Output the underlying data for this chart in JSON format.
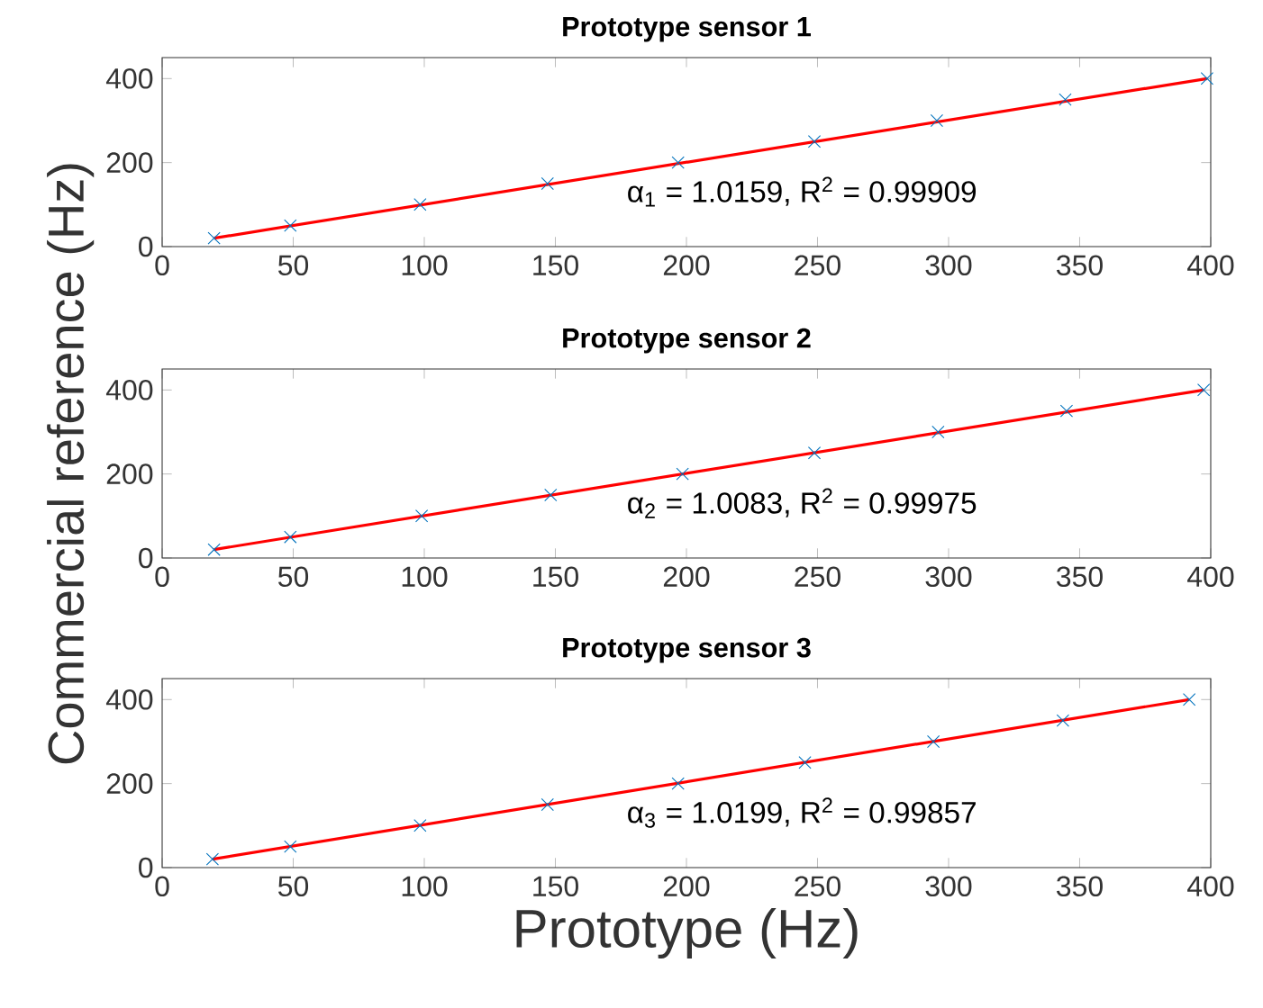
{
  "chart_data": [
    {
      "type": "scatter",
      "title": "Prototype sensor 1",
      "xlim": [
        0,
        400
      ],
      "xticks": [
        0,
        50,
        100,
        150,
        200,
        250,
        300,
        350,
        400
      ],
      "ylim": [
        0,
        450
      ],
      "yticks": [
        0,
        200,
        400
      ],
      "series": [
        {
          "color": "#0072bd",
          "marker": "cross",
          "x": [
            19.8,
            48.9,
            98.4,
            147,
            196.8,
            248.8,
            295.5,
            344.5,
            398.6
          ],
          "values": [
            20,
            50,
            100,
            150,
            200,
            250,
            300,
            350,
            400
          ]
        },
        {
          "type": "line",
          "marker": "none",
          "color": "#ff0000",
          "x": [
            19.8,
            398.6
          ],
          "values": [
            20,
            400
          ]
        }
      ],
      "annotations": [
        "α$_{1}$ = 1.0159, R$^{2}$ = 0.99909"
      ]
    },
    {
      "type": "scatter",
      "title": "Prototype sensor 2",
      "ylabel": "Commercial reference (Hz)",
      "xlim": [
        0,
        400
      ],
      "xticks": [
        0,
        50,
        100,
        150,
        200,
        250,
        300,
        350,
        400
      ],
      "ylim": [
        0,
        450
      ],
      "yticks": [
        0,
        200,
        400
      ],
      "series": [
        {
          "color": "#0072bd",
          "marker": "cross",
          "x": [
            19.8,
            48.9,
            99,
            148.2,
            198.5,
            248.8,
            296,
            345,
            397.3
          ],
          "values": [
            20,
            50,
            100,
            150,
            200,
            250,
            300,
            350,
            400
          ]
        },
        {
          "type": "line",
          "marker": "none",
          "color": "#ff0000",
          "x": [
            19.8,
            397.3
          ],
          "values": [
            20,
            400
          ]
        }
      ],
      "annotations": [
        "α$_{2}$ = 1.0083, R$^{2}$ = 0.99975"
      ]
    },
    {
      "type": "scatter",
      "title": "Prototype sensor 3",
      "xlabel": "Prototype (Hz)",
      "xlim": [
        0,
        400
      ],
      "xticks": [
        0,
        50,
        100,
        150,
        200,
        250,
        300,
        350,
        400
      ],
      "ylim": [
        0,
        450
      ],
      "yticks": [
        0,
        200,
        400
      ],
      "series": [
        {
          "color": "#0072bd",
          "marker": "cross",
          "x": [
            19.2,
            48.9,
            98.4,
            147,
            196.8,
            245.2,
            294.2,
            343.6,
            391.8
          ],
          "values": [
            20,
            50,
            100,
            150,
            200,
            250,
            300,
            350,
            400
          ]
        },
        {
          "type": "line",
          "marker": "none",
          "color": "#ff0000",
          "x": [
            19.2,
            391.8
          ],
          "values": [
            20,
            400
          ]
        }
      ],
      "annotations": [
        "α$_{3}$ = 1.0199, R$^{2}$ = 0.99857"
      ]
    }
  ]
}
